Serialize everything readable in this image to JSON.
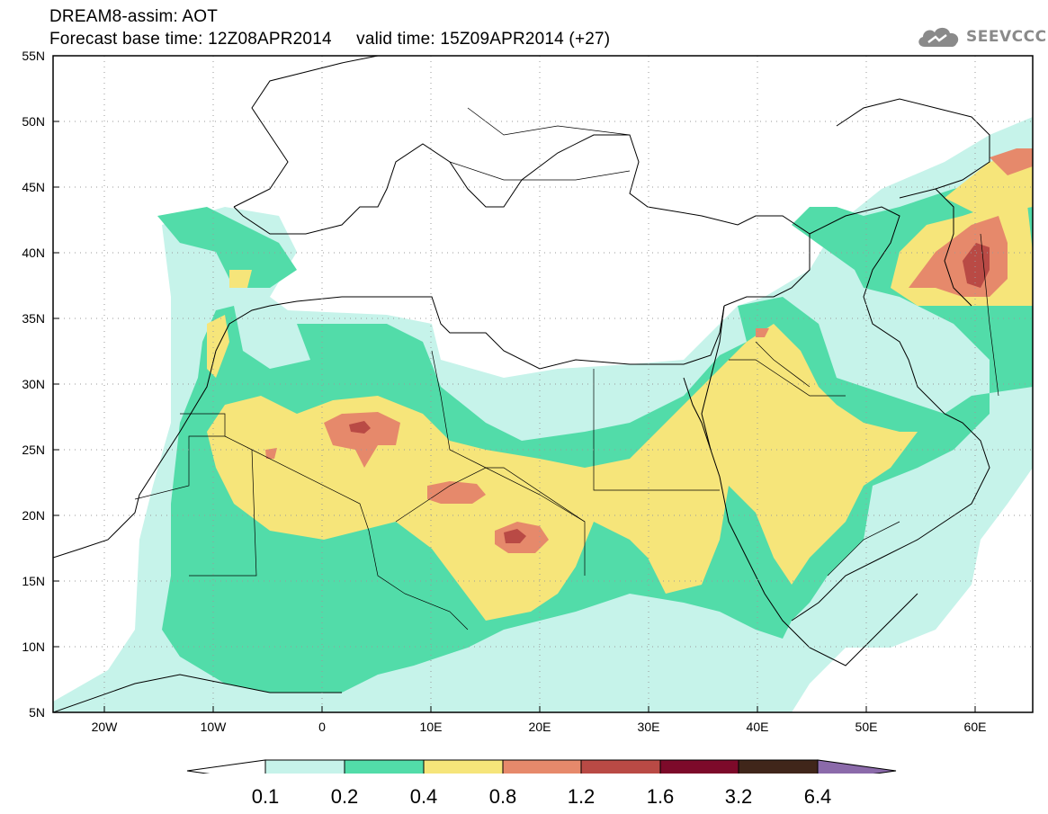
{
  "header": {
    "title_line1": "DREAM8-assim: AOT",
    "title_line2": "Forecast base time: 12Z08APR2014     valid time: 15Z09APR2014 (+27)",
    "logo_text": "SEEVCCC"
  },
  "map": {
    "lat_labels": [
      "55N",
      "50N",
      "45N",
      "40N",
      "35N",
      "30N",
      "25N",
      "20N",
      "15N",
      "10N",
      "5N"
    ],
    "lon_labels": [
      "20W",
      "10W",
      "0",
      "10E",
      "20E",
      "30E",
      "40E",
      "50E",
      "60E"
    ],
    "grid": "dotted"
  },
  "colorbar": {
    "colors": [
      "#ffffff",
      "#c6f3ea",
      "#52dca9",
      "#f6e57a",
      "#e6896b",
      "#b94a45",
      "#7d0a2a",
      "#40261a",
      "#8b6aaa"
    ],
    "labels": [
      "0.1",
      "0.2",
      "0.4",
      "0.8",
      "1.2",
      "1.6",
      "3.2",
      "6.4"
    ]
  }
}
